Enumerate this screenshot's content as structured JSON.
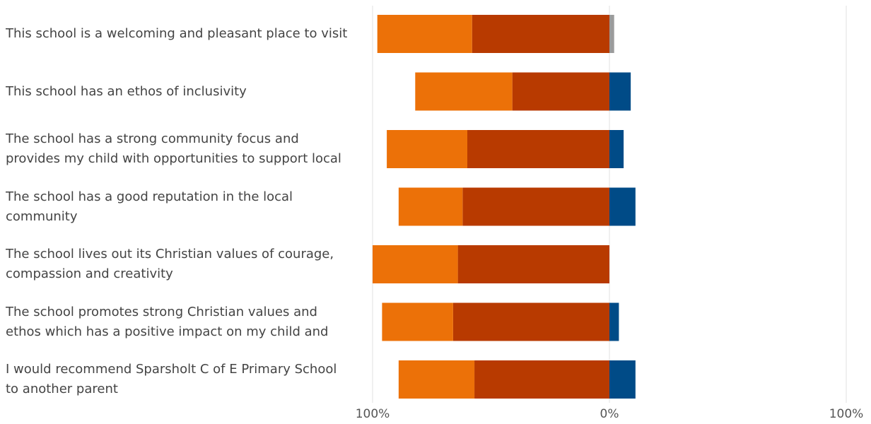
{
  "chart_data": {
    "type": "bar",
    "orientation": "horizontal",
    "stacked": "diverging",
    "categories": [
      "This school is a welcoming and pleasant place to visit",
      "This school has an ethos of inclusivity",
      "The school has a strong community focus and provides my child with opportunities to support local",
      "The school has a good reputation in the local community",
      "The school lives out its Christian values of courage, compassion and creativity",
      "The school promotes strong Christian values and ethos which has a positive impact on my child and",
      "I would recommend Sparsholt C of E Primary School to another parent"
    ],
    "series": [
      {
        "side": "negative",
        "color": "#B83A00",
        "values": [
          58,
          41,
          60,
          62,
          64,
          66,
          57
        ]
      },
      {
        "side": "negative",
        "color": "#EC7108",
        "values": [
          40,
          41,
          34,
          27,
          36,
          30,
          32
        ]
      },
      {
        "side": "positive",
        "color": "#9B9B9B",
        "values": [
          2,
          0,
          0,
          0,
          0,
          0,
          0
        ]
      },
      {
        "side": "positive",
        "color": "#004B87",
        "values": [
          0,
          9,
          6,
          11,
          0,
          4,
          11
        ]
      }
    ],
    "xlim": [
      -100,
      100
    ],
    "ticks": [
      {
        "value": -100,
        "label": "100%"
      },
      {
        "value": 0,
        "label": "0%"
      },
      {
        "value": 100,
        "label": "100%"
      }
    ],
    "grid": true,
    "legend": "none"
  }
}
